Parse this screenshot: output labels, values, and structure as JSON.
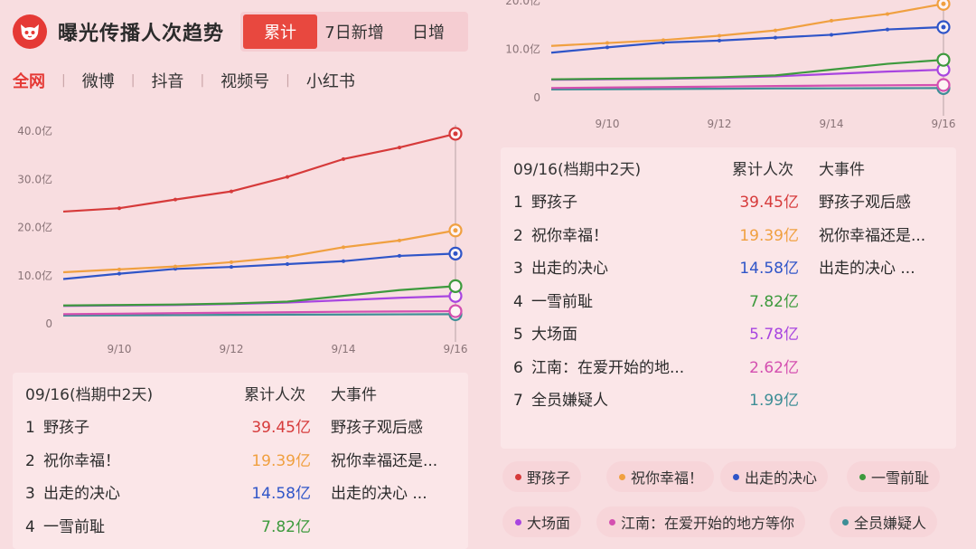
{
  "header": {
    "title": "曝光传播人次趋势",
    "logo_icon": "cat-face-icon",
    "tabs": [
      {
        "label": "累计",
        "active": true
      },
      {
        "label": "7日新增",
        "active": false
      },
      {
        "label": "日增",
        "active": false
      }
    ]
  },
  "platforms": [
    {
      "label": "全网",
      "active": true
    },
    {
      "label": "微博",
      "active": false
    },
    {
      "label": "抖音",
      "active": false
    },
    {
      "label": "视频号",
      "active": false
    },
    {
      "label": "小红书",
      "active": false
    }
  ],
  "colors": {
    "accent": "#e8483f",
    "series": [
      "#d63a3a",
      "#f0a040",
      "#2f55c8",
      "#3d9a3d",
      "#a845e0",
      "#d44fb0",
      "#3e8e96"
    ]
  },
  "tooltip": {
    "date_label": "09/16(档期中2天)",
    "value_header": "累计人次",
    "event_header": "大事件",
    "rows": [
      {
        "rank": "1",
        "name": "野孩子",
        "value": "39.45亿",
        "event": "野孩子观后感"
      },
      {
        "rank": "2",
        "name": "祝你幸福！",
        "value": "19.39亿",
        "event": "祝你幸福还是..."
      },
      {
        "rank": "3",
        "name": "出走的决心",
        "value": "14.58亿",
        "event": "出走的决心 ..."
      },
      {
        "rank": "4",
        "name": "一雪前耻",
        "value": "7.82亿",
        "event": ""
      },
      {
        "rank": "5",
        "name": "大场面",
        "value": "5.78亿",
        "event": ""
      },
      {
        "rank": "6",
        "name": "江南：在爱开始的地...",
        "value": "2.62亿",
        "event": ""
      },
      {
        "rank": "7",
        "name": "全员嫌疑人",
        "value": "1.99亿",
        "event": ""
      }
    ]
  },
  "legend": [
    {
      "name": "野孩子"
    },
    {
      "name": "祝你幸福！"
    },
    {
      "name": "出走的决心"
    },
    {
      "name": "一雪前耻"
    },
    {
      "name": "大场面"
    },
    {
      "name": "江南：在爱开始的地方等你"
    },
    {
      "name": "全员嫌疑人"
    }
  ],
  "chart_data": {
    "type": "line",
    "x": [
      "9/9",
      "9/10",
      "9/11",
      "9/12",
      "9/13",
      "9/14",
      "9/15",
      "9/16"
    ],
    "x_tick_labels": [
      "9/10",
      "9/12",
      "9/14",
      "9/16"
    ],
    "y_tick_labels": [
      "0",
      "10.0亿",
      "20.0亿",
      "30.0亿",
      "40.0亿"
    ],
    "ylim": [
      0,
      40
    ],
    "series": [
      {
        "name": "野孩子",
        "values": [
          23.3,
          24.0,
          25.8,
          27.5,
          30.5,
          34.2,
          36.6,
          39.45
        ]
      },
      {
        "name": "祝你幸福！",
        "values": [
          10.7,
          11.3,
          11.9,
          12.8,
          13.9,
          15.9,
          17.3,
          19.39
        ]
      },
      {
        "name": "出走的决心",
        "values": [
          9.3,
          10.4,
          11.4,
          11.8,
          12.4,
          13.0,
          14.1,
          14.58
        ]
      },
      {
        "name": "一雪前耻",
        "values": [
          3.8,
          3.9,
          4.0,
          4.2,
          4.6,
          5.8,
          7.0,
          7.82
        ]
      },
      {
        "name": "大场面",
        "values": [
          3.7,
          3.8,
          3.9,
          4.1,
          4.4,
          4.9,
          5.4,
          5.78
        ]
      },
      {
        "name": "江南：在爱开始的地方等你",
        "values": [
          2.0,
          2.1,
          2.2,
          2.3,
          2.4,
          2.5,
          2.56,
          2.62
        ]
      },
      {
        "name": "全员嫌疑人",
        "values": [
          1.7,
          1.75,
          1.8,
          1.85,
          1.9,
          1.93,
          1.96,
          1.99
        ]
      }
    ]
  }
}
